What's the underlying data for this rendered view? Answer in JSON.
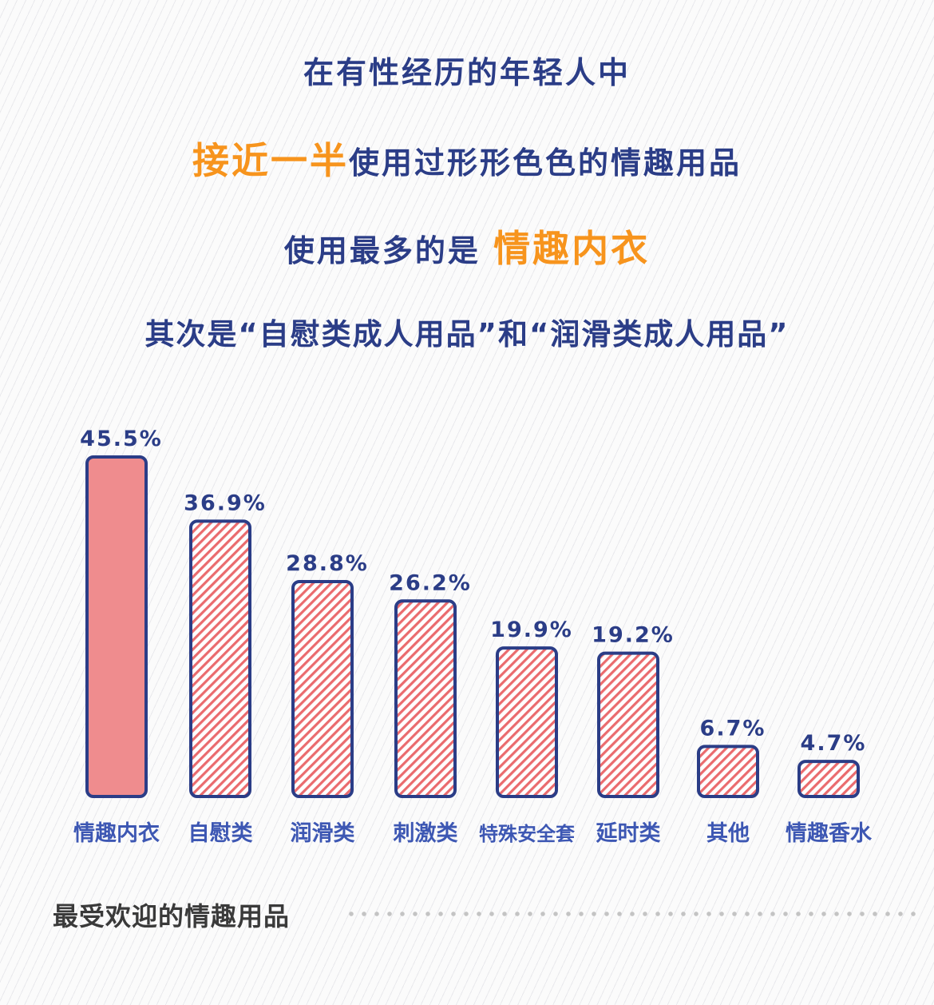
{
  "headlines": {
    "line1": "在有性经历的年轻人中",
    "line2_highlight": "接近一半",
    "line2_rest": "使用过形形色色的情趣用品",
    "line3_lead": "使用最多的是 ",
    "line3_highlight": "情趣内衣",
    "line4": "其次是“自慰类成人用品”和“润滑类成人用品”"
  },
  "colors": {
    "title_blue": "#2b3d87",
    "highlight_orange": "#f7941d",
    "bar_outline": "#2b3d87",
    "bar_fill_solid": "#ef8c8e",
    "bar_stripe": "#ea6b6e",
    "category_label": "#3d57b3"
  },
  "chart_data": {
    "type": "bar",
    "categories": [
      "情趣内衣",
      "自慰类",
      "润滑类",
      "刺激类",
      "特殊安全套",
      "延时类",
      "其他",
      "情趣香水"
    ],
    "values": [
      45.5,
      36.9,
      28.8,
      26.2,
      19.9,
      19.2,
      6.7,
      4.7
    ],
    "value_labels": [
      "45.5%",
      "36.9%",
      "28.8%",
      "26.2%",
      "19.9%",
      "19.2%",
      "6.7%",
      "4.7%"
    ],
    "unit": "%",
    "title": "在有性经历的年轻人中",
    "xlabel": "",
    "ylabel": "",
    "ylim": [
      0,
      45.5
    ],
    "grid": false,
    "legend": "none"
  },
  "footer": {
    "label": "最受欢迎的情趣用品"
  }
}
